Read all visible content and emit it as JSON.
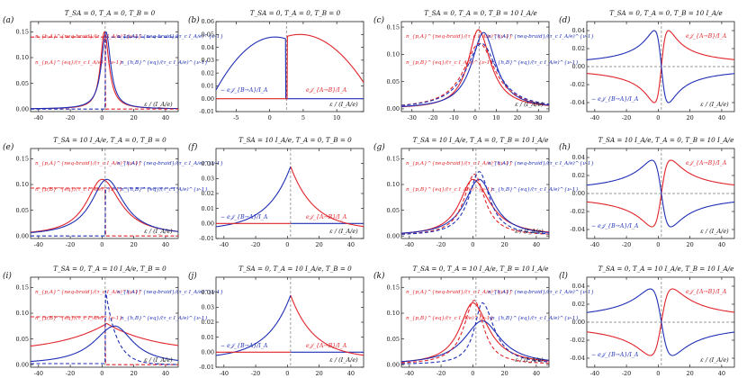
{
  "figure": {
    "panel_labels": [
      "(a)",
      "(b)",
      "(c)",
      "(d)",
      "(e)",
      "(f)",
      "(g)",
      "(h)",
      "(i)",
      "(j)",
      "(k)",
      "(l)"
    ],
    "colors": {
      "red": "#e0242a",
      "blue": "#1f2fb4",
      "axis": "#222222",
      "dashed_line": "#777777"
    }
  },
  "chart_data": [
    {
      "panel": "(a)",
      "type": "line",
      "title": "T_SA = 0, T_A = 0, T_B = 0",
      "xlim": [
        -45,
        48
      ],
      "ylim": [
        -0.005,
        0.17
      ],
      "xticks": [
        "-40",
        "-20",
        "0",
        "20",
        "40"
      ],
      "yticks": [
        "0.00",
        "0.05",
        "0.10",
        "0.15"
      ],
      "legend": [
        "n_{h,A}^{neq-braid}/(τ_c I_A/e)^{ν-1}",
        "n_{p,A}^{neq-braid}/(τ_c I_A/e)^{ν-1}",
        "n_{p,A}^{eq}/(τ_c I_A/e)^{ν-1}",
        "n_{h,B}^{eq}/(τ_c I_A/e)^{ν-1}"
      ],
      "xlabel": "ε / (I_A/e)"
    },
    {
      "panel": "(b)",
      "type": "line",
      "title": "T_SA = 0, T_A = 0, T_B = 0",
      "xlim": [
        -8,
        14
      ],
      "ylim": [
        -0.01,
        0.06
      ],
      "xticks": [
        "-5",
        "0",
        "5",
        "10"
      ],
      "yticks": [
        "-0.01",
        "0.00",
        "0.01",
        "0.02",
        "0.03",
        "0.04",
        "0.05",
        "0.06"
      ],
      "legend": [
        "− e𝒥_{B→A}/I_A",
        "e𝒥_{A→B}/I_A"
      ],
      "xlabel": "ε / (I_A/e)"
    },
    {
      "panel": "(c)",
      "type": "line",
      "title": "T_SA = 0, T_A = 0, T_B = 10 I_A/e",
      "xlim": [
        -35,
        35
      ],
      "ylim": [
        -0.005,
        0.16
      ],
      "xticks": [
        "-30",
        "-20",
        "-10",
        "0",
        "10",
        "20",
        "30"
      ],
      "yticks": [
        "0.00",
        "0.05",
        "0.10",
        "0.15"
      ],
      "legend": [
        "n_{p,A}^{neq-braid}/(τ_c I_A/e)^{ν-1}",
        "n_{h,A}^{neq-braid}/(τ_c I_A/e)^{ν-1}",
        "n_{p,B}^{eq}/(τ_c I_A/e)^{ν-1}",
        "n_{h,B}^{eq}/(τ_c I_A/e)^{ν-1}"
      ],
      "xlabel": "ε / (I_A/e)"
    },
    {
      "panel": "(d)",
      "type": "line",
      "title": "T_SA = 0, T_A = 0, T_B = 10 I_A/e",
      "xlim": [
        -45,
        48
      ],
      "ylim": [
        -0.05,
        0.05
      ],
      "xticks": [
        "-40",
        "-20",
        "0",
        "20",
        "40"
      ],
      "yticks": [
        "-0.04",
        "-0.02",
        "0.00",
        "0.02",
        "0.04"
      ],
      "legend": [
        "e𝒥_{A→B}/I_A",
        "− e𝒥_{B→A}/I_A"
      ],
      "xlabel": "ε / (I_A/e)"
    },
    {
      "panel": "(e)",
      "type": "line",
      "title": "T_SA = 10 I_A/e, T_A = 0, T_B = 0",
      "xlim": [
        -45,
        48
      ],
      "ylim": [
        -0.005,
        0.17
      ],
      "xticks": [
        "-40",
        "-20",
        "0",
        "20",
        "40"
      ],
      "yticks": [
        "0.00",
        "0.05",
        "0.10",
        "0.15"
      ],
      "legend": [
        "n_{p,A}^{neq-braid}/(τ_c I_A/e)^{ν-1}",
        "n_{h,A}^{neq-braid}/(τ_c I_A/e)^{ν-1}",
        "n_{p,B}^{eq}/(τ_c I_A/e)^{ν-1}",
        "n_{h,B}^{eq}/(τ_c I_A/e)^{ν-1}"
      ],
      "xlabel": "ε / (I_A/e)"
    },
    {
      "panel": "(f)",
      "type": "line",
      "title": "T_SA = 10 I_A/e, T_A = 0, T_B = 0",
      "xlim": [
        -45,
        48
      ],
      "ylim": [
        -0.01,
        0.05
      ],
      "xticks": [
        "-40",
        "-20",
        "0",
        "20",
        "40"
      ],
      "yticks": [
        "-0.01",
        "0.00",
        "0.01",
        "0.02",
        "0.03",
        "0.04"
      ],
      "legend": [
        "− e𝒥_{B→A}/I_A",
        "e𝒥_{A→B}/I_A"
      ],
      "xlabel": "ε / (I_A/e)"
    },
    {
      "panel": "(g)",
      "type": "line",
      "title": "T_SA = 10 I_A/e, T_A = 0, T_B = 10 I_A/e",
      "xlim": [
        -45,
        48
      ],
      "ylim": [
        -0.005,
        0.17
      ],
      "xticks": [
        "-40",
        "-20",
        "0",
        "20",
        "40"
      ],
      "yticks": [
        "0.00",
        "0.05",
        "0.10",
        "0.15"
      ],
      "legend": [
        "n_{p,A}^{neq-braid}/(τ_c I_A/e)^{ν-1}",
        "n_{h,A}^{neq-braid}/(τ_c I_A/e)^{ν-1}",
        "n_{p,B}^{eq}/(τ_c I_A/e)^{ν-1}",
        "n_{h,B}^{eq}/(τ_c I_A/e)^{ν-1}"
      ],
      "xlabel": "ε / (I_A/e)"
    },
    {
      "panel": "(h)",
      "type": "line",
      "title": "T_SA = 10 I_A/e, T_A = 0, T_B = 10 I_A/e",
      "xlim": [
        -45,
        48
      ],
      "ylim": [
        -0.05,
        0.05
      ],
      "xticks": [
        "-40",
        "-20",
        "0",
        "20",
        "40"
      ],
      "yticks": [
        "-0.04",
        "-0.02",
        "0.00",
        "0.02",
        "0.04"
      ],
      "legend": [
        "e𝒥_{A→B}/I_A",
        "− e𝒥_{B→A}/I_A"
      ],
      "xlabel": "ε / (I_A/e)"
    },
    {
      "panel": "(i)",
      "type": "line",
      "title": "T_SA = 0, T_A = 10 I_A/e, T_B = 0",
      "xlim": [
        -45,
        48
      ],
      "ylim": [
        -0.005,
        0.17
      ],
      "xticks": [
        "-40",
        "-20",
        "0",
        "20",
        "40"
      ],
      "yticks": [
        "0.00",
        "0.05",
        "0.10",
        "0.15"
      ],
      "legend": [
        "n_{p,A}^{neq-braid}/(τ_c I_A/e)^{ν-1}",
        "n_{h,A}^{neq-braid}/(τ_c I_A/e)^{ν-1}",
        "n_{p,B}^{eq}/(τ_c I_A/e)^{ν-1}",
        "n_{h,B}^{eq}/(τ_c I_A/e)^{ν-1}"
      ],
      "xlabel": "ε / (I_A/e)"
    },
    {
      "panel": "(j)",
      "type": "line",
      "title": "T_SA = 0, T_A = 10 I_A/e, T_B = 0",
      "xlim": [
        -45,
        48
      ],
      "ylim": [
        -0.01,
        0.05
      ],
      "xticks": [
        "-40",
        "-20",
        "0",
        "20",
        "40"
      ],
      "yticks": [
        "-0.01",
        "0.00",
        "0.01",
        "0.02",
        "0.03",
        "0.04"
      ],
      "legend": [
        "− e𝒥_{B→A}/I_A",
        "e𝒥_{A→B}/I_A"
      ],
      "xlabel": "ε / (I_A/e)"
    },
    {
      "panel": "(k)",
      "type": "line",
      "title": "T_SA = 0, T_A = 10 I_A/e, T_B = 10 I_A/e",
      "xlim": [
        -45,
        48
      ],
      "ylim": [
        -0.005,
        0.17
      ],
      "xticks": [
        "-40",
        "-20",
        "0",
        "20",
        "40"
      ],
      "yticks": [
        "0.00",
        "0.05",
        "0.10",
        "0.15"
      ],
      "legend": [
        "n_{p,A}^{neq-braid}/(τ_c I_A/e)^{ν-1}",
        "n_{h,A}^{neq-braid}/(τ_c I_A/e)^{ν-1}",
        "n_{p,B}^{eq}/(τ_c I_A/e)^{ν-1}",
        "n_{h,B}^{eq}/(τ_c I_A/e)^{ν-1}"
      ],
      "xlabel": "ε / (I_A/e)"
    },
    {
      "panel": "(l)",
      "type": "line",
      "title": "T_SA = 0, T_A = 10 I_A/e, T_B = 10 I_A/e",
      "xlim": [
        -45,
        48
      ],
      "ylim": [
        -0.05,
        0.05
      ],
      "xticks": [
        "-40",
        "-20",
        "0",
        "20",
        "40"
      ],
      "yticks": [
        "-0.04",
        "-0.02",
        "0.00",
        "0.02",
        "0.04"
      ],
      "legend": [
        "e𝒥_{A→B}/I_A",
        "− e𝒥_{B→A}/I_A"
      ],
      "xlabel": "ε / (I_A/e)"
    }
  ]
}
